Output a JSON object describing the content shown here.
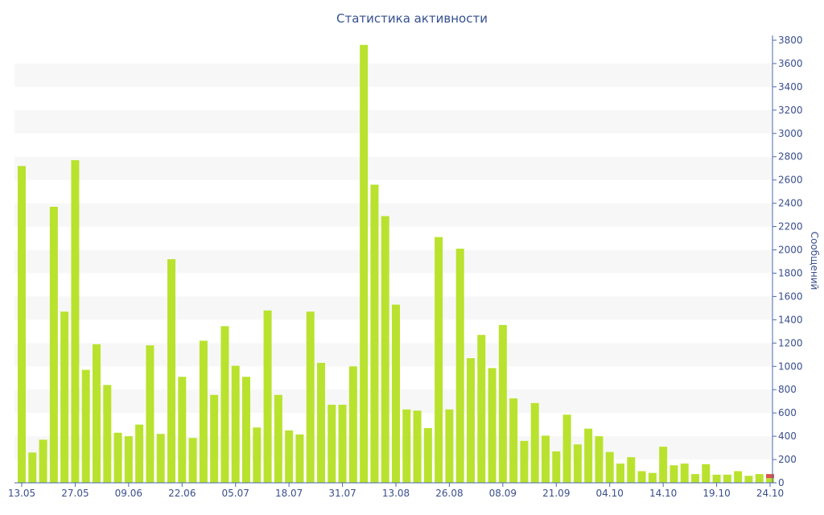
{
  "chart_data": {
    "type": "bar",
    "title": "Статистика активности",
    "ylabel": "Сообщений",
    "xlabel": "",
    "ylim": [
      0,
      3800
    ],
    "y_ticks": [
      0,
      200,
      400,
      600,
      800,
      1000,
      1200,
      1400,
      1600,
      1800,
      2000,
      2200,
      2400,
      2600,
      2800,
      3000,
      3200,
      3400,
      3600,
      3800
    ],
    "y_axis_side": "right",
    "grid": "alternating horizontal bands",
    "x_tick_labels": [
      "13.05",
      "27.05",
      "09.06",
      "22.06",
      "05.07",
      "18.07",
      "31.07",
      "13.08",
      "26.08",
      "08.09",
      "21.09",
      "04.10",
      "14.10",
      "19.10",
      "24.10"
    ],
    "x_tick_positions": [
      0,
      5,
      10,
      15,
      20,
      25,
      30,
      35,
      40,
      45,
      50,
      55,
      60,
      65,
      70
    ],
    "series": [
      {
        "color": "#b9e22e",
        "values": [
          2720,
          260,
          370,
          2370,
          1470,
          2770,
          970,
          1190,
          840,
          430,
          400,
          500,
          1180,
          420,
          1920,
          910,
          385,
          1220,
          755,
          1345,
          1005,
          910,
          475,
          1480,
          755,
          450,
          415,
          1470,
          1030,
          670,
          670,
          1000,
          3760,
          2560,
          2290,
          1530,
          630,
          620,
          470,
          2110,
          630,
          2010,
          1070,
          1270,
          985,
          1355,
          725,
          360,
          685,
          405,
          270,
          585,
          330,
          465,
          400,
          265,
          165,
          220,
          100,
          85,
          310,
          150,
          165,
          75,
          160,
          70,
          70,
          100,
          60,
          75,
          40
        ]
      },
      {
        "color": "#d9534f",
        "values": [
          0,
          0,
          0,
          0,
          0,
          0,
          0,
          0,
          0,
          0,
          0,
          0,
          0,
          0,
          0,
          0,
          0,
          0,
          0,
          0,
          0,
          0,
          0,
          0,
          0,
          0,
          0,
          0,
          0,
          0,
          0,
          0,
          0,
          0,
          0,
          0,
          0,
          0,
          0,
          0,
          0,
          0,
          0,
          0,
          0,
          0,
          0,
          0,
          0,
          0,
          0,
          0,
          0,
          0,
          0,
          0,
          0,
          0,
          0,
          0,
          0,
          0,
          0,
          0,
          0,
          0,
          0,
          0,
          0,
          0,
          35
        ]
      }
    ]
  }
}
